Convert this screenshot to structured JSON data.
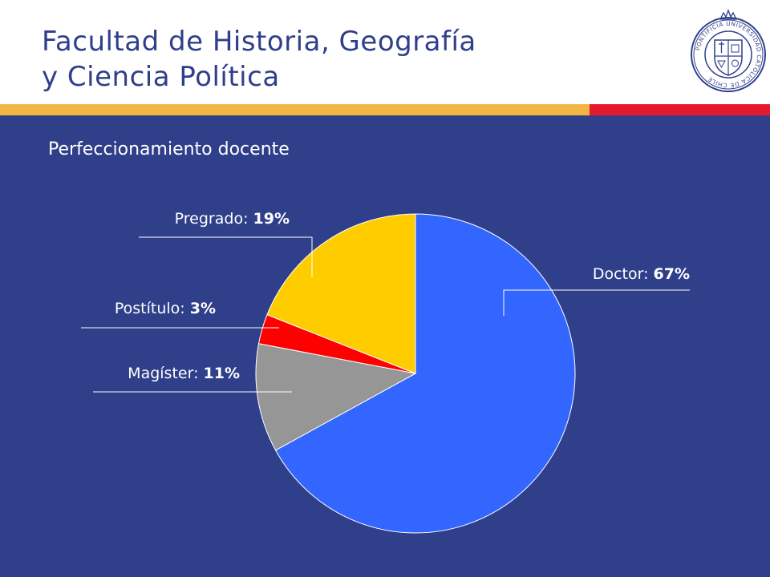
{
  "header": {
    "title_line1": "Facultad de Historia, Geografía",
    "title_line2": "y Ciencia Política",
    "logo_name": "university-seal",
    "logo_texts": {
      "ring": "PONTIFICIA UNIVERSIDAD CATÓLICA DE CHILE"
    }
  },
  "colors": {
    "background": "#2F3F8A",
    "title": "#2F3F8A",
    "stripe_left": "#F4B642",
    "stripe_right": "#E41B2D"
  },
  "chart_data": {
    "type": "pie",
    "title": "Perfeccionamiento docente",
    "slices": [
      {
        "name": "Doctor",
        "value": 67,
        "label": "67%",
        "color": "#3366FF"
      },
      {
        "name": "Magíster",
        "value": 11,
        "label": "11%",
        "color": "#969696"
      },
      {
        "name": "Postítulo",
        "value": 3,
        "label": "3%",
        "color": "#FF0000"
      },
      {
        "name": "Pregrado",
        "value": 19,
        "label": "19%",
        "color": "#FFCC00"
      }
    ],
    "start_angle_deg": 0,
    "direction": "clockwise"
  }
}
